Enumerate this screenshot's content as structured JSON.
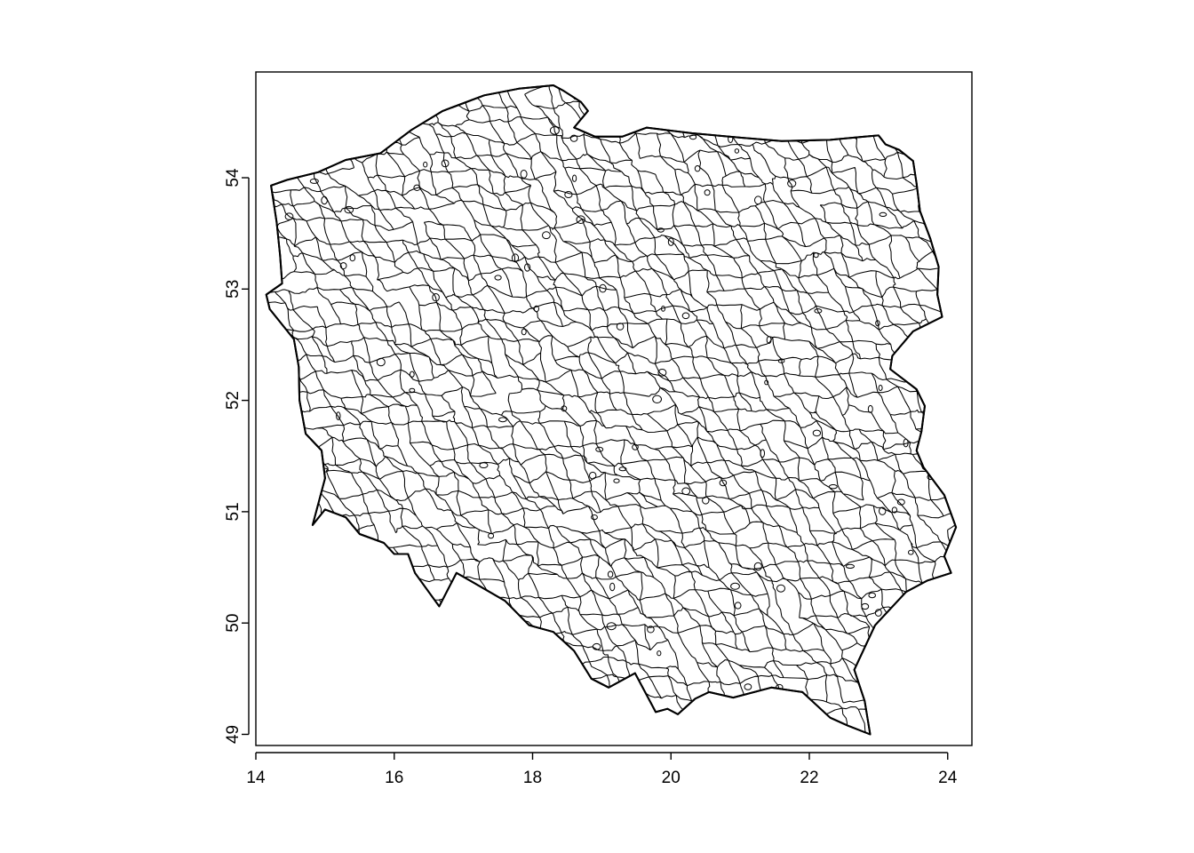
{
  "chart_data": {
    "type": "map",
    "title": "",
    "xlabel": "",
    "ylabel": "",
    "xlim": [
      14.0,
      24.35
    ],
    "ylim": [
      48.9,
      54.95
    ],
    "x_ticks": [
      "14",
      "16",
      "18",
      "20",
      "22",
      "24"
    ],
    "y_ticks": [
      "49",
      "50",
      "51",
      "52",
      "53",
      "54"
    ],
    "grid": false,
    "legend": "none",
    "line_color": "#000000",
    "fill_color": "#ffffff",
    "outline": [
      [
        14.22,
        53.93
      ],
      [
        14.45,
        53.98
      ],
      [
        14.9,
        54.05
      ],
      [
        15.3,
        54.16
      ],
      [
        15.8,
        54.22
      ],
      [
        16.25,
        54.43
      ],
      [
        16.7,
        54.6
      ],
      [
        17.3,
        54.74
      ],
      [
        17.8,
        54.8
      ],
      [
        18.3,
        54.83
      ],
      [
        18.45,
        54.78
      ],
      [
        18.7,
        54.68
      ],
      [
        18.8,
        54.6
      ],
      [
        18.6,
        54.45
      ],
      [
        18.9,
        54.37
      ],
      [
        19.3,
        54.37
      ],
      [
        19.65,
        54.45
      ],
      [
        20.3,
        54.4
      ],
      [
        21.0,
        54.36
      ],
      [
        21.6,
        54.33
      ],
      [
        22.3,
        54.34
      ],
      [
        22.8,
        54.37
      ],
      [
        23.0,
        54.38
      ],
      [
        23.1,
        54.3
      ],
      [
        23.3,
        54.25
      ],
      [
        23.5,
        54.15
      ],
      [
        23.55,
        53.95
      ],
      [
        23.6,
        53.7
      ],
      [
        23.75,
        53.45
      ],
      [
        23.87,
        53.2
      ],
      [
        23.85,
        52.95
      ],
      [
        23.92,
        52.75
      ],
      [
        23.5,
        52.62
      ],
      [
        23.2,
        52.4
      ],
      [
        23.17,
        52.28
      ],
      [
        23.55,
        52.1
      ],
      [
        23.67,
        51.95
      ],
      [
        23.62,
        51.72
      ],
      [
        23.55,
        51.55
      ],
      [
        23.65,
        51.4
      ],
      [
        23.95,
        51.15
      ],
      [
        24.12,
        50.86
      ],
      [
        23.95,
        50.6
      ],
      [
        24.05,
        50.45
      ],
      [
        23.7,
        50.38
      ],
      [
        23.4,
        50.28
      ],
      [
        22.95,
        49.98
      ],
      [
        22.65,
        49.58
      ],
      [
        22.8,
        49.3
      ],
      [
        22.88,
        49.0
      ],
      [
        22.55,
        49.08
      ],
      [
        22.3,
        49.15
      ],
      [
        21.9,
        49.38
      ],
      [
        21.45,
        49.42
      ],
      [
        20.9,
        49.33
      ],
      [
        20.55,
        49.38
      ],
      [
        20.35,
        49.32
      ],
      [
        20.1,
        49.18
      ],
      [
        19.95,
        49.23
      ],
      [
        19.78,
        49.2
      ],
      [
        19.48,
        49.55
      ],
      [
        19.1,
        49.42
      ],
      [
        18.85,
        49.5
      ],
      [
        18.6,
        49.75
      ],
      [
        18.3,
        49.92
      ],
      [
        17.95,
        49.98
      ],
      [
        17.6,
        50.2
      ],
      [
        17.1,
        50.38
      ],
      [
        16.9,
        50.45
      ],
      [
        16.65,
        50.15
      ],
      [
        16.3,
        50.45
      ],
      [
        16.2,
        50.62
      ],
      [
        16.0,
        50.62
      ],
      [
        15.85,
        50.72
      ],
      [
        15.5,
        50.8
      ],
      [
        15.3,
        50.95
      ],
      [
        15.0,
        51.02
      ],
      [
        14.82,
        50.88
      ],
      [
        15.0,
        51.3
      ],
      [
        14.95,
        51.55
      ],
      [
        14.72,
        51.7
      ],
      [
        14.63,
        52.0
      ],
      [
        14.62,
        52.3
      ],
      [
        14.55,
        52.55
      ],
      [
        14.2,
        52.82
      ],
      [
        14.15,
        52.95
      ],
      [
        14.38,
        53.05
      ],
      [
        14.35,
        53.3
      ],
      [
        14.3,
        53.6
      ],
      [
        14.22,
        53.93
      ]
    ]
  }
}
